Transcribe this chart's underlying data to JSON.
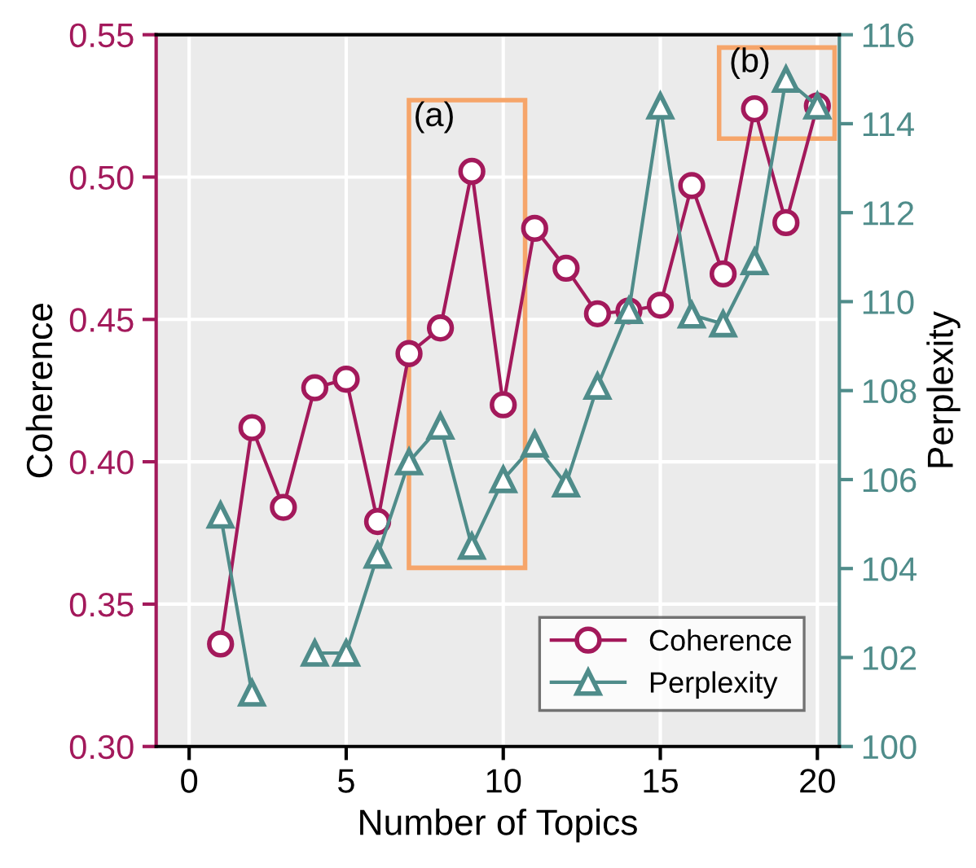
{
  "chart_data": {
    "type": "line",
    "xlabel": "Number of Topics",
    "ylabel": "Coherence",
    "y2label": "Perplexity",
    "x": [
      1,
      2,
      3,
      4,
      5,
      6,
      7,
      8,
      9,
      10,
      11,
      12,
      13,
      14,
      15,
      16,
      17,
      18,
      19,
      20
    ],
    "series": [
      {
        "name": "Coherence",
        "color": "#a3195b",
        "marker": "circle",
        "values": [
          0.336,
          0.412,
          0.384,
          0.426,
          0.429,
          0.379,
          0.438,
          0.447,
          0.502,
          0.42,
          0.482,
          0.468,
          0.452,
          0.453,
          0.455,
          0.497,
          0.466,
          0.524,
          0.484,
          0.525
        ]
      },
      {
        "name": "Perplexity",
        "color": "#4f8c8a",
        "marker": "triangle",
        "axis": "y2",
        "values": [
          105.2,
          101.2,
          null,
          102.1,
          102.1,
          104.3,
          106.4,
          107.2,
          104.5,
          106.0,
          106.8,
          105.9,
          108.1,
          109.8,
          114.4,
          109.7,
          109.5,
          110.9,
          115.0,
          114.4
        ]
      }
    ],
    "xlim": [
      -1.05,
      20.7
    ],
    "xticks": [
      0,
      5,
      10,
      15,
      20
    ],
    "ylim": [
      0.3,
      0.55
    ],
    "yticks": [
      {
        "value": 0.3,
        "label": "0.30"
      },
      0.35,
      {
        "value": 0.4,
        "label": "0.40"
      },
      0.45,
      {
        "value": 0.5,
        "label": "0.50"
      },
      0.55
    ],
    "y2lim": [
      100,
      116
    ],
    "y2ticks": [
      100,
      102,
      104,
      106,
      108,
      110,
      112,
      114,
      116
    ],
    "annotations": [
      "(a)",
      "(b)"
    ],
    "grid": true,
    "legend": "bottom right",
    "line_style": "solid"
  }
}
